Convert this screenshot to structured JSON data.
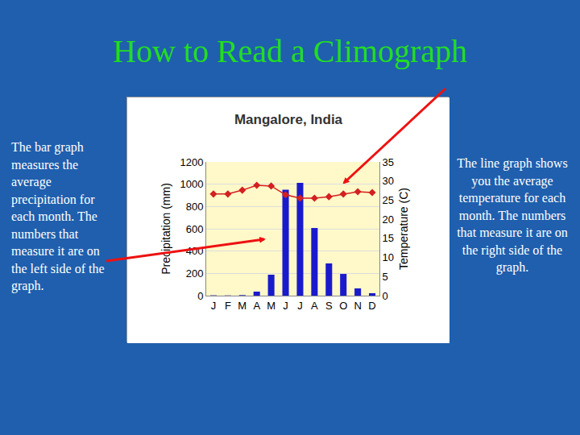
{
  "page": {
    "title": "How to Read a Climograph",
    "left_text": "The bar graph measures the average precipitation for each month.  The numbers that measure it are on the left side of the graph.",
    "right_text": "The line graph shows you the average temperature for each month.  The numbers that measure it are on the right side of the graph."
  },
  "chart_data": {
    "type": "bar",
    "title": "Mangalore, India",
    "categories": [
      "J",
      "F",
      "M",
      "A",
      "M",
      "J",
      "J",
      "A",
      "S",
      "O",
      "N",
      "D"
    ],
    "y_label": "Precipitation (mm)",
    "y2_label": "Temperature (C)",
    "series": [
      {
        "type": "bar",
        "color": "#1a1acd",
        "values": [
          3,
          2,
          5,
          36,
          188,
          950,
          1012,
          607,
          289,
          195,
          65,
          22
        ]
      },
      {
        "type": "line",
        "axis": "y2",
        "color": "#d42020",
        "marker": "diamond",
        "values": [
          26.6,
          26.6,
          27.6,
          28.9,
          28.7,
          26.4,
          25.5,
          25.5,
          25.9,
          26.6,
          27.2,
          27.0
        ]
      }
    ],
    "ylim": [
      0,
      1200
    ],
    "yticks": [
      0,
      200,
      400,
      600,
      800,
      1000,
      1200
    ],
    "y2lim": [
      0,
      35
    ],
    "y2ticks": [
      0,
      5,
      10,
      15,
      20,
      25,
      30,
      35
    ],
    "grid": true
  }
}
